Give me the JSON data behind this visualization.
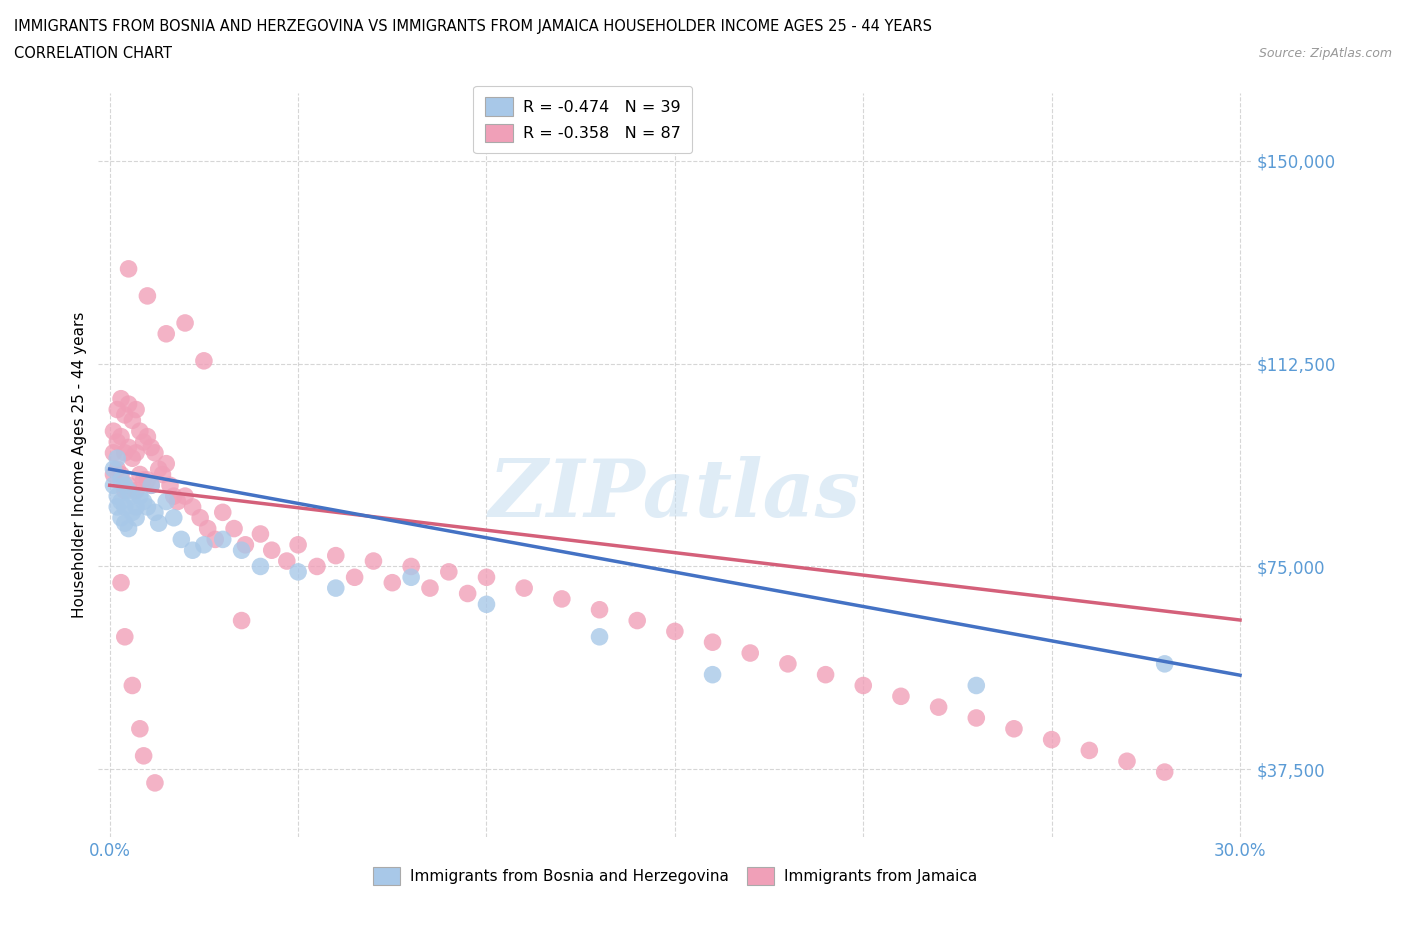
{
  "title_line1": "IMMIGRANTS FROM BOSNIA AND HERZEGOVINA VS IMMIGRANTS FROM JAMAICA HOUSEHOLDER INCOME AGES 25 - 44 YEARS",
  "title_line2": "CORRELATION CHART",
  "source_text": "Source: ZipAtlas.com",
  "ylabel": "Householder Income Ages 25 - 44 years",
  "xlim": [
    0.0,
    0.3
  ],
  "ylim": [
    25000,
    162500
  ],
  "yticks": [
    37500,
    75000,
    112500,
    150000
  ],
  "ytick_labels": [
    "$37,500",
    "$75,000",
    "$112,500",
    "$150,000"
  ],
  "xtick_labels": [
    "0.0%",
    "30.0%"
  ],
  "watermark": "ZIPatlas",
  "bosnia_R": -0.474,
  "bosnia_N": 39,
  "jamaica_R": -0.358,
  "jamaica_N": 87,
  "bosnia_color": "#a8c8e8",
  "jamaica_color": "#f0a0b8",
  "bosnia_line_color": "#4472c4",
  "jamaica_line_color": "#d4607a",
  "legend_bosnia_label": "R = -0.474   N = 39",
  "legend_jamaica_label": "R = -0.358   N = 87",
  "bottom_legend_bosnia": "Immigrants from Bosnia and Herzegovina",
  "bottom_legend_jamaica": "Immigrants from Jamaica",
  "bosnia_x": [
    0.001,
    0.001,
    0.002,
    0.002,
    0.002,
    0.003,
    0.003,
    0.003,
    0.004,
    0.004,
    0.004,
    0.005,
    0.005,
    0.006,
    0.006,
    0.007,
    0.007,
    0.008,
    0.009,
    0.01,
    0.011,
    0.012,
    0.013,
    0.015,
    0.017,
    0.019,
    0.022,
    0.025,
    0.03,
    0.035,
    0.04,
    0.05,
    0.06,
    0.08,
    0.1,
    0.13,
    0.16,
    0.23,
    0.28
  ],
  "bosnia_y": [
    93000,
    90000,
    95000,
    88000,
    86000,
    91000,
    87000,
    84000,
    90000,
    86000,
    83000,
    89000,
    82000,
    88000,
    85000,
    86000,
    84000,
    88000,
    87000,
    86000,
    90000,
    85000,
    83000,
    87000,
    84000,
    80000,
    78000,
    79000,
    80000,
    78000,
    75000,
    74000,
    71000,
    73000,
    68000,
    62000,
    55000,
    53000,
    57000
  ],
  "jamaica_x": [
    0.001,
    0.001,
    0.001,
    0.002,
    0.002,
    0.002,
    0.003,
    0.003,
    0.003,
    0.004,
    0.004,
    0.004,
    0.005,
    0.005,
    0.005,
    0.006,
    0.006,
    0.007,
    0.007,
    0.007,
    0.008,
    0.008,
    0.009,
    0.009,
    0.01,
    0.01,
    0.011,
    0.011,
    0.012,
    0.013,
    0.014,
    0.015,
    0.016,
    0.017,
    0.018,
    0.02,
    0.022,
    0.024,
    0.026,
    0.028,
    0.03,
    0.033,
    0.036,
    0.04,
    0.043,
    0.047,
    0.05,
    0.055,
    0.06,
    0.065,
    0.07,
    0.075,
    0.08,
    0.085,
    0.09,
    0.095,
    0.1,
    0.11,
    0.12,
    0.13,
    0.14,
    0.15,
    0.16,
    0.17,
    0.18,
    0.19,
    0.2,
    0.21,
    0.22,
    0.23,
    0.24,
    0.25,
    0.26,
    0.27,
    0.28,
    0.005,
    0.01,
    0.015,
    0.02,
    0.025,
    0.008,
    0.006,
    0.004,
    0.003,
    0.009,
    0.012,
    0.035
  ],
  "jamaica_y": [
    100000,
    96000,
    92000,
    104000,
    98000,
    93000,
    106000,
    99000,
    92000,
    103000,
    96000,
    89000,
    105000,
    97000,
    90000,
    102000,
    95000,
    104000,
    96000,
    89000,
    100000,
    92000,
    98000,
    91000,
    99000,
    91000,
    97000,
    90000,
    96000,
    93000,
    92000,
    94000,
    90000,
    88000,
    87000,
    88000,
    86000,
    84000,
    82000,
    80000,
    85000,
    82000,
    79000,
    81000,
    78000,
    76000,
    79000,
    75000,
    77000,
    73000,
    76000,
    72000,
    75000,
    71000,
    74000,
    70000,
    73000,
    71000,
    69000,
    67000,
    65000,
    63000,
    61000,
    59000,
    57000,
    55000,
    53000,
    51000,
    49000,
    47000,
    45000,
    43000,
    41000,
    39000,
    37000,
    130000,
    125000,
    118000,
    120000,
    113000,
    45000,
    53000,
    62000,
    72000,
    40000,
    35000,
    65000
  ]
}
